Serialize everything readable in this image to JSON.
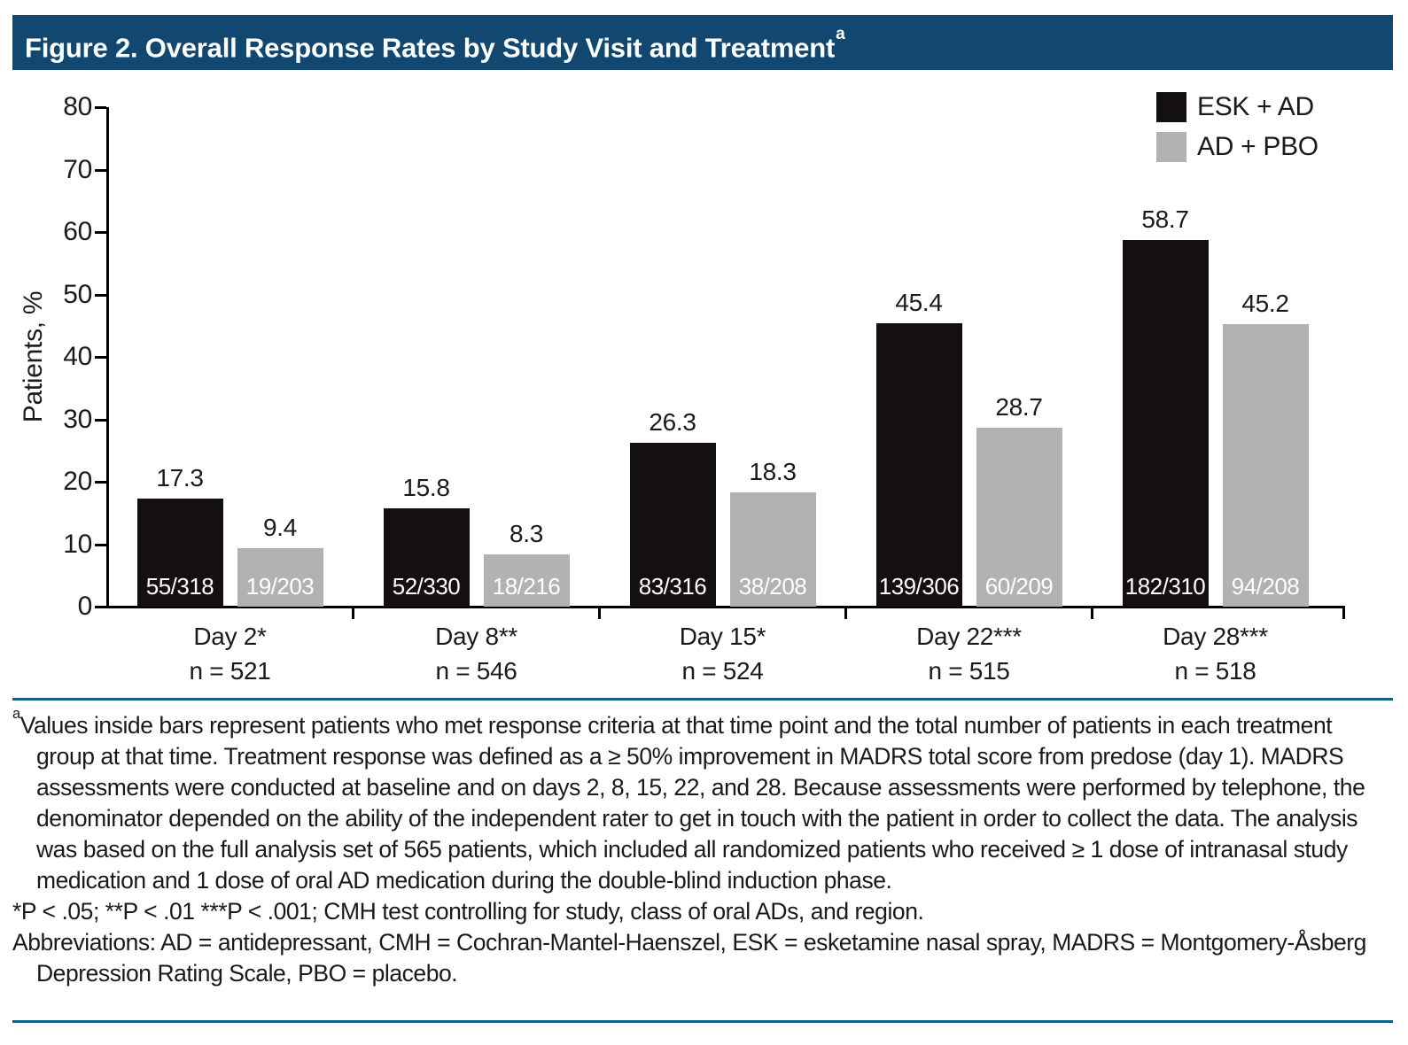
{
  "header": {
    "title": "Figure 2. Overall Response Rates by Study Visit and Treatment",
    "title_sup": "a"
  },
  "chart_data": {
    "type": "bar",
    "title": "Figure 2. Overall Response Rates by Study Visit and Treatment",
    "ylabel": "Patients, %",
    "ylim": [
      0,
      80
    ],
    "yticks": [
      0,
      10,
      20,
      30,
      40,
      50,
      60,
      70,
      80
    ],
    "legend_position": "top-right",
    "grid": false,
    "series": [
      {
        "name": "ESK + AD",
        "color": "#141011"
      },
      {
        "name": "AD + PBO",
        "color": "#B4B1B1"
      }
    ],
    "groups": [
      {
        "label": "Day 2*",
        "n_label": "n = 521",
        "values": [
          17.3,
          9.4
        ],
        "fractions": [
          "55/318",
          "19/203"
        ]
      },
      {
        "label": "Day 8**",
        "n_label": "n = 546",
        "values": [
          15.8,
          8.3
        ],
        "fractions": [
          "52/330",
          "18/216"
        ]
      },
      {
        "label": "Day 15*",
        "n_label": "n = 524",
        "values": [
          26.3,
          18.3
        ],
        "fractions": [
          "83/316",
          "38/208"
        ]
      },
      {
        "label": "Day 22***",
        "n_label": "n = 515",
        "values": [
          45.4,
          28.7
        ],
        "fractions": [
          "139/306",
          "60/209"
        ]
      },
      {
        "label": "Day 28***",
        "n_label": "n = 518",
        "values": [
          58.7,
          45.2
        ],
        "fractions": [
          "182/310",
          "94/208"
        ]
      }
    ]
  },
  "footnotes": {
    "a_sup": "a",
    "a_text": "Values inside bars represent patients who met response criteria at that time point and the total number of patients in each treatment group at that time. Treatment response was defined as a ≥ 50% improvement in MADRS total score from predose (day 1). MADRS assessments were conducted at baseline and on days 2, 8, 15, 22, and 28. Because assessments were performed by telephone, the denominator depended on the ability of the independent rater to get in touch with the patient in order to collect the data. The analysis was based on the full analysis set of 565 patients, which included all randomized patients who received ≥ 1 dose of intranasal study medication and 1 dose of oral AD medication during the double-blind induction phase.",
    "pvalues": "*P < .05; **P < .01 ***P < .001; CMH test controlling for study, class of oral ADs, and region.",
    "abbreviations": "Abbreviations: AD = antidepressant, CMH = Cochran-Mantel-Haenszel, ESK = esketamine nasal spray, MADRS = Montgomery-Åsberg Depression Rating Scale, PBO = placebo."
  },
  "colors": {
    "title_bar_bg": "#12486F",
    "rule_line": "#155E86",
    "axis": "#000000",
    "bar_black": "#141011",
    "bar_gray": "#B4B1B1"
  }
}
